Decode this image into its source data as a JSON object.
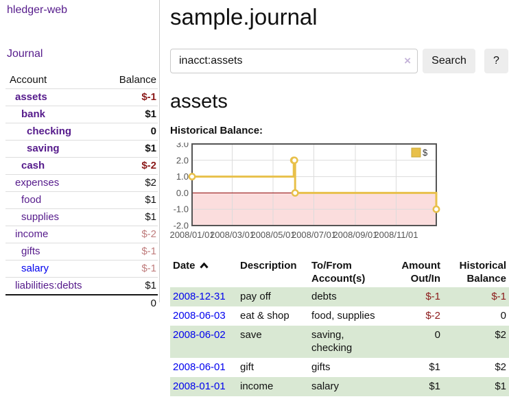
{
  "sidebar": {
    "brand": "hledger-web",
    "nav": {
      "journal": "Journal"
    },
    "accounts_table": {
      "account_header": "Account",
      "balance_header": "Balance"
    },
    "accounts": [
      {
        "name": "assets",
        "balance": "$-1",
        "indent": 1,
        "matched": true,
        "visited": true
      },
      {
        "name": "bank",
        "balance": "$1",
        "indent": 2,
        "matched": true,
        "visited": true
      },
      {
        "name": "checking",
        "balance": "0",
        "indent": 3,
        "matched": true,
        "visited": true
      },
      {
        "name": "saving",
        "balance": "$1",
        "indent": 3,
        "matched": true,
        "visited": true
      },
      {
        "name": "cash",
        "balance": "$-2",
        "indent": 2,
        "matched": true,
        "visited": true
      },
      {
        "name": "expenses",
        "balance": "$2",
        "indent": 1,
        "matched": false,
        "visited": true
      },
      {
        "name": "food",
        "balance": "$1",
        "indent": 2,
        "matched": false,
        "visited": true
      },
      {
        "name": "supplies",
        "balance": "$1",
        "indent": 2,
        "matched": false,
        "visited": true
      },
      {
        "name": "income",
        "balance": "$-2",
        "indent": 1,
        "matched": false,
        "visited": true
      },
      {
        "name": "gifts",
        "balance": "$-1",
        "indent": 2,
        "matched": false,
        "visited": true
      },
      {
        "name": "salary",
        "balance": "$-1",
        "indent": 2,
        "matched": false,
        "visited": false
      },
      {
        "name": "liabilities:debts",
        "balance": "$1",
        "indent": 1,
        "matched": false,
        "visited": true
      }
    ],
    "total": "0"
  },
  "main": {
    "title": "sample.journal",
    "search": {
      "value": "inacct:assets",
      "clear_icon": "×",
      "search_button": "Search",
      "help_button": "?"
    },
    "account_heading": "assets",
    "chart_title": "Historical Balance:"
  },
  "chart_data": {
    "type": "line",
    "step": true,
    "title": "Historical Balance:",
    "series": [
      {
        "name": "$",
        "points": [
          [
            "2008-01-01",
            1.0
          ],
          [
            "2008-06-01",
            2.0
          ],
          [
            "2008-06-02",
            2.0
          ],
          [
            "2008-06-03",
            0.0
          ],
          [
            "2008-12-31",
            -1.0
          ]
        ]
      }
    ],
    "xlim": [
      "2008-01-01",
      "2008-12-31"
    ],
    "ylim": [
      -2.0,
      3.0
    ],
    "yticks": [
      3.0,
      2.0,
      1.0,
      0.0,
      -1.0,
      -2.0
    ],
    "xticks": [
      "2008/01/01",
      "2008/03/01",
      "2008/05/01",
      "2008/07/01",
      "2008/09/01",
      "2008/11/01"
    ],
    "legend": {
      "label": "$",
      "position": "top-right"
    },
    "grid": true,
    "line_color": "#e8c04a",
    "marker_fill": "#ffffff",
    "negative_fill": "#fbdddd",
    "zero_line_color": "#8c0000",
    "border_color": "#545454",
    "grid_color": "#dcdcdc",
    "axis_text_color": "#545454"
  },
  "register": {
    "headers": {
      "date": "Date",
      "description": "Description",
      "accounts": "To/From Account(s)",
      "amount": "Amount Out/In",
      "balance": "Historical Balance"
    },
    "sort": "ascending",
    "rows": [
      {
        "date": "2008-12-31",
        "description": "pay off",
        "accounts": "debts",
        "amount": "$-1",
        "balance": "$-1"
      },
      {
        "date": "2008-06-03",
        "description": "eat & shop",
        "accounts": "food, supplies",
        "amount": "$-2",
        "balance": "0"
      },
      {
        "date": "2008-06-02",
        "description": "save",
        "accounts": "saving, checking",
        "amount": "0",
        "balance": "$2"
      },
      {
        "date": "2008-06-01",
        "description": "gift",
        "accounts": "gifts",
        "amount": "$1",
        "balance": "$2"
      },
      {
        "date": "2008-01-01",
        "description": "income",
        "accounts": "salary",
        "amount": "$1",
        "balance": "$1"
      }
    ]
  },
  "colors": {
    "link_purple": "#551a8b",
    "link_blue": "#0000ee",
    "negative_strong": "#8b1a1a",
    "negative_soft": "#bf7c7c",
    "row_stripe_green": "#d9e8d3",
    "button_gray": "#ededed"
  }
}
